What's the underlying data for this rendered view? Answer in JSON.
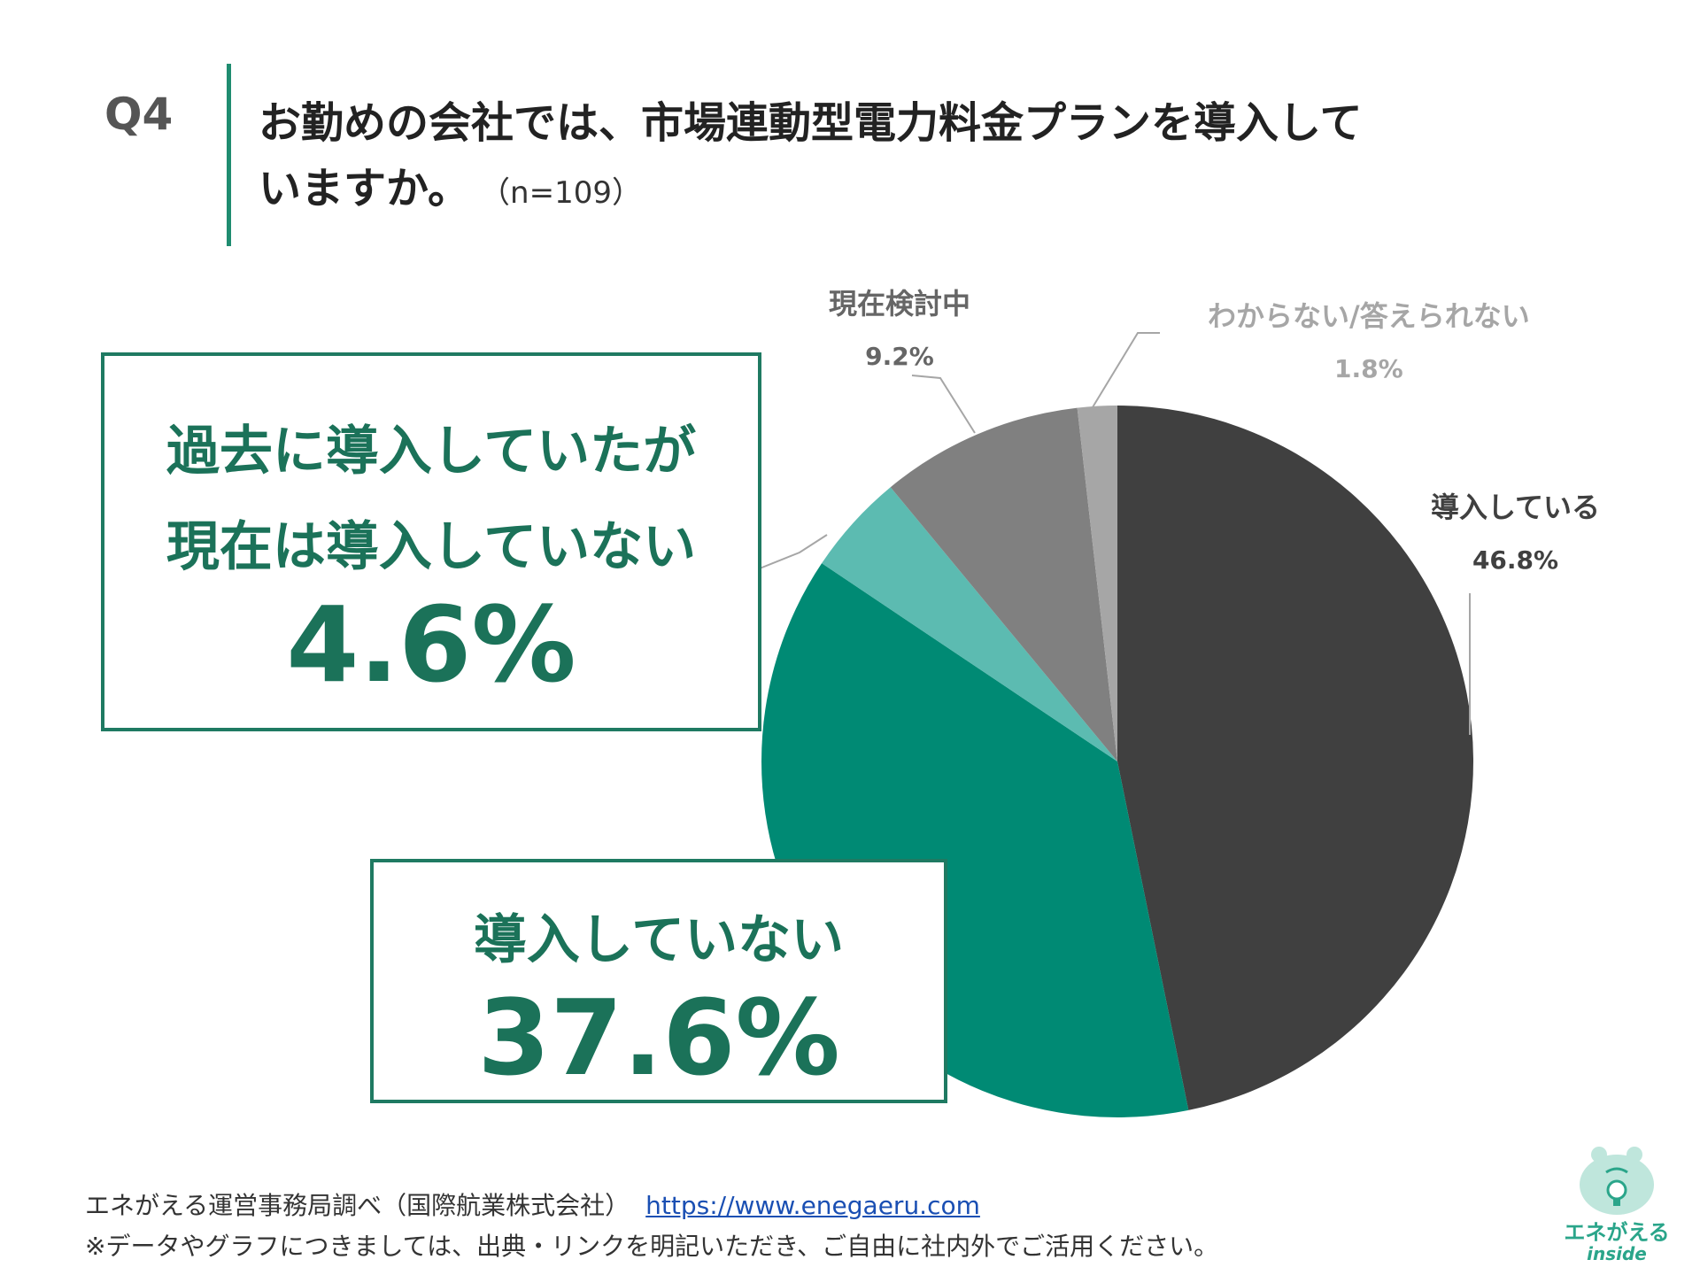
{
  "header": {
    "question_id": "Q4",
    "question_line1": "お勤めの会社では、市場連動型電力料金プランを導入して",
    "question_line2": "いますか。",
    "sample": "（n=109）"
  },
  "chart_data": {
    "type": "pie",
    "start_angle_deg": 0,
    "direction": "clockwise",
    "slices": [
      {
        "label": "導入している",
        "value": 46.8,
        "display": "46.8%",
        "color": "#404040"
      },
      {
        "label": "導入していない",
        "value": 37.6,
        "display": "37.6%",
        "color": "#008a74"
      },
      {
        "label": "過去に導入していたが現在は導入していない",
        "value": 4.6,
        "display": "4.6%",
        "color": "#5cbbb1"
      },
      {
        "label": "現在検討中",
        "value": 9.2,
        "display": "9.2%",
        "color": "#808080"
      },
      {
        "label": "わからない/答えられない",
        "value": 1.8,
        "display": "1.8%",
        "color": "#a6a6a6"
      }
    ]
  },
  "labels": {
    "introduced": {
      "label": "導入している",
      "pct": "46.8%"
    },
    "considering": {
      "label": "現在検討中",
      "pct": "9.2%"
    },
    "unknown": {
      "label": "わからない/答えられない",
      "pct": "1.8%"
    }
  },
  "callouts": {
    "past": {
      "line1": "過去に導入していたが",
      "line2": "現在は導入していない",
      "pct": "4.6%"
    },
    "not_introduced": {
      "line1": "導入していない",
      "pct": "37.6%"
    }
  },
  "footer": {
    "source": "エネがえる運営事務局調べ（国際航業株式会社）",
    "link": "https://www.enegaeru.com",
    "note": "※データやグラフにつきましては、出典・リンクを明記いただき、ご自由に社内外でご活用ください。"
  },
  "logo": {
    "name": "エネがえる",
    "sub": "inside"
  }
}
